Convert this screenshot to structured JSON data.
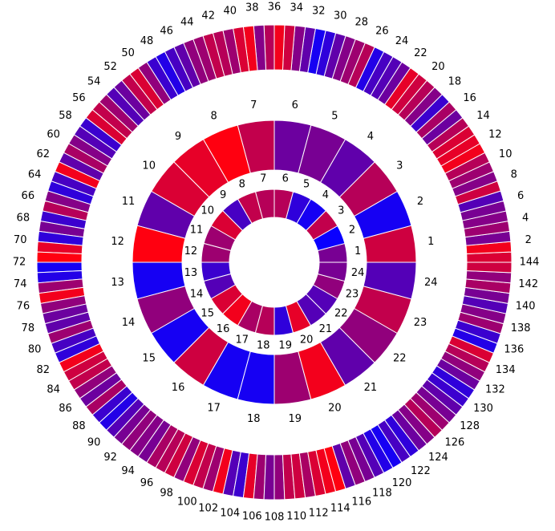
{
  "rings": [
    {
      "name": "inner",
      "count": 24,
      "labels": [
        "1",
        "2",
        "3",
        "4",
        "5",
        "6",
        "7",
        "8",
        "9",
        "10",
        "11",
        "12",
        "13",
        "14",
        "15",
        "16",
        "17",
        "18",
        "19",
        "20",
        "21",
        "22",
        "23",
        "24"
      ],
      "mix": [
        0.45,
        0.0,
        0.75,
        0.05,
        0.15,
        0.7,
        0.7,
        0.75,
        0.25,
        0.85,
        0.6,
        0.6,
        0.2,
        0.3,
        0.85,
        0.95,
        0.65,
        0.7,
        0.15,
        0.9,
        0.3,
        0.3,
        0.55,
        0.45
      ]
    },
    {
      "name": "middle",
      "count": 24,
      "labels": [
        "1",
        "2",
        "3",
        "4",
        "5",
        "6",
        "7",
        "8",
        "9",
        "10",
        "11",
        "12",
        "13",
        "14",
        "15",
        "16",
        "17",
        "18",
        "19",
        "20",
        "21",
        "22",
        "23",
        "24"
      ],
      "mix": [
        0.8,
        0.05,
        0.7,
        0.35,
        0.45,
        0.4,
        0.75,
        1.0,
        0.9,
        0.85,
        0.35,
        1.0,
        0.05,
        0.55,
        0.05,
        0.8,
        0.05,
        0.05,
        0.6,
        0.95,
        0.35,
        0.55,
        0.75,
        0.3
      ]
    },
    {
      "name": "outer",
      "count": 144,
      "labels": [
        "2",
        "4",
        "6",
        "8",
        "10",
        "12",
        "14",
        "16",
        "18",
        "20",
        "22",
        "24",
        "26",
        "28",
        "30",
        "32",
        "34",
        "36",
        "38",
        "40",
        "42",
        "44",
        "46",
        "48",
        "50",
        "52",
        "54",
        "56",
        "58",
        "60",
        "62",
        "64",
        "66",
        "68",
        "70",
        "72",
        "74",
        "76",
        "78",
        "80",
        "82",
        "84",
        "86",
        "88",
        "90",
        "92",
        "94",
        "96",
        "98",
        "100",
        "102",
        "104",
        "106",
        "108",
        "110",
        "112",
        "114",
        "116",
        "118",
        "120",
        "122",
        "124",
        "126",
        "128",
        "130",
        "132",
        "134",
        "136",
        "138",
        "140",
        "142",
        "144"
      ],
      "mix": [
        0.85,
        0.95,
        0.45,
        0.6,
        0.5,
        0.45,
        0.3,
        0.8,
        0.5,
        0.6,
        0.7,
        0.95,
        0.9,
        0.85,
        0.7,
        0.4,
        0.65,
        0.2,
        0.5,
        0.7,
        0.8,
        0.9,
        0.4,
        0.3,
        0.25,
        0.1,
        0.7,
        0.6,
        0.5,
        0.35,
        0.15,
        0.05,
        0.35,
        0.5,
        0.8,
        0.95,
        0.7,
        0.5,
        0.95,
        0.85,
        0.6,
        0.7,
        0.75,
        0.6,
        0.55,
        0.35,
        0.25,
        0.1,
        0.2,
        0.55,
        0.85,
        0.75,
        0.4,
        0.3,
        0.6,
        0.75,
        0.85,
        0.2,
        0.3,
        0.5,
        0.65,
        0.35,
        0.95,
        0.25,
        0.15,
        0.5,
        0.7,
        0.2,
        0.45,
        0.15,
        0.9,
        1.0,
        0.05,
        0.1,
        0.6,
        0.95,
        0.55,
        0.4,
        0.35,
        0.6,
        0.25,
        0.15,
        0.95,
        0.8,
        0.75,
        0.55,
        0.4,
        0.65,
        0.2,
        0.1,
        0.3,
        0.45,
        0.55,
        0.5,
        0.45,
        0.65,
        0.7,
        0.8,
        0.55,
        0.85,
        0.75,
        0.6,
        0.95,
        0.3,
        0.2,
        0.9,
        0.6,
        0.45,
        0.55,
        0.75,
        0.8,
        0.65,
        0.85,
        0.95,
        1.0,
        0.35,
        0.55,
        0.45,
        0.3,
        0.1,
        0.05,
        0.25,
        0.15,
        0.4,
        0.5,
        0.7,
        0.6,
        0.45,
        0.35,
        0.2,
        0.15,
        0.4,
        0.55,
        0.7,
        0.85,
        0.1,
        0.2,
        0.6,
        0.5,
        0.3,
        0.45,
        0.65,
        0.55,
        0.8
      ]
    }
  ],
  "colors": {
    "low": "#0a00ff",
    "high": "#ff0010",
    "separator": "#ffffff",
    "label": "#000000"
  }
}
